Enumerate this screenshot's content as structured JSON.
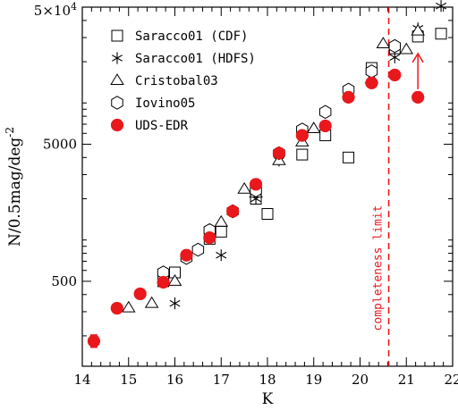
{
  "chart_data": {
    "type": "scatter",
    "xlabel": "K",
    "ylabel": "N/0.5mag/deg",
    "ylabel_sup": "-2",
    "xlim": [
      14,
      22
    ],
    "ylim": [
      120,
      50000
    ],
    "y_scale": "log",
    "x_ticks": [
      14,
      15,
      16,
      17,
      18,
      19,
      20,
      21,
      22
    ],
    "x_tick_labels": [
      "14",
      "15",
      "16",
      "17",
      "18",
      "19",
      "20",
      "21",
      "22"
    ],
    "y_ticks": [
      500,
      5000,
      50000
    ],
    "y_tick_labels": [
      "500",
      "5000",
      "5×10"
    ],
    "y_top_label_sup": "4",
    "legend_position": "top-left",
    "series": [
      {
        "name": "Saracco01 (CDF)",
        "marker": "square",
        "points": [
          [
            15.75,
            500
          ],
          [
            16.0,
            580
          ],
          [
            16.75,
            1020
          ],
          [
            17.0,
            1150
          ],
          [
            17.75,
            2000
          ],
          [
            18.0,
            1550
          ],
          [
            18.75,
            4200
          ],
          [
            19.25,
            5800
          ],
          [
            19.75,
            4000
          ],
          [
            20.25,
            18000
          ],
          [
            20.75,
            25000
          ],
          [
            21.25,
            30500
          ],
          [
            21.75,
            32000
          ]
        ]
      },
      {
        "name": "Saracco01 (HDFS)",
        "marker": "star",
        "points": [
          [
            16.0,
            345
          ],
          [
            17.0,
            775
          ],
          [
            17.75,
            2000
          ],
          [
            18.25,
            3800
          ],
          [
            19.75,
            11500
          ],
          [
            20.75,
            21500
          ],
          [
            21.25,
            35000
          ],
          [
            21.75,
            51000
          ]
        ]
      },
      {
        "name": "Cristobal03",
        "marker": "triangle",
        "points": [
          [
            15.0,
            320
          ],
          [
            15.5,
            345
          ],
          [
            16.0,
            500
          ],
          [
            17.0,
            1350
          ],
          [
            17.5,
            2350
          ],
          [
            17.75,
            2200
          ],
          [
            18.25,
            3800
          ],
          [
            18.75,
            5200
          ],
          [
            19.0,
            6500
          ],
          [
            20.25,
            15000
          ],
          [
            20.5,
            27000
          ],
          [
            21.0,
            24500
          ],
          [
            21.25,
            33500
          ]
        ]
      },
      {
        "name": "Iovino05",
        "marker": "hexagon",
        "points": [
          [
            15.75,
            580
          ],
          [
            16.25,
            740
          ],
          [
            16.5,
            850
          ],
          [
            16.75,
            1180
          ],
          [
            17.25,
            1620
          ],
          [
            17.75,
            2300
          ],
          [
            18.25,
            4300
          ],
          [
            18.75,
            6400
          ],
          [
            19.25,
            8600
          ],
          [
            19.75,
            12500
          ],
          [
            20.25,
            17000
          ],
          [
            20.75,
            26000
          ]
        ]
      },
      {
        "name": "UDS-EDR",
        "marker": "filled-circle",
        "color": "#e8181c",
        "points": [
          [
            14.25,
            183
          ],
          [
            14.75,
            318
          ],
          [
            15.25,
            405
          ],
          [
            15.75,
            492
          ],
          [
            16.25,
            775
          ],
          [
            16.75,
            1040
          ],
          [
            17.25,
            1620
          ],
          [
            17.75,
            2550
          ],
          [
            18.25,
            4300
          ],
          [
            18.75,
            5800
          ],
          [
            19.25,
            6800
          ],
          [
            19.75,
            11000
          ],
          [
            20.25,
            14000
          ],
          [
            20.75,
            16000
          ],
          [
            21.25,
            11000
          ]
        ],
        "error_bars": [
          [
            14.25,
            165,
            203
          ],
          [
            14.75,
            293,
            343
          ],
          [
            15.25,
            380,
            430
          ],
          [
            15.75,
            470,
            515
          ],
          [
            16.25,
            740,
            810
          ],
          [
            16.75,
            1000,
            1085
          ]
        ],
        "lower_limit_arrow_at": [
          21.25,
          11000
        ]
      }
    ],
    "annotations": [
      {
        "text": "completeness limit",
        "x": 20.62,
        "style": "dashed-vertical-line",
        "color": "#e8181c"
      }
    ]
  }
}
